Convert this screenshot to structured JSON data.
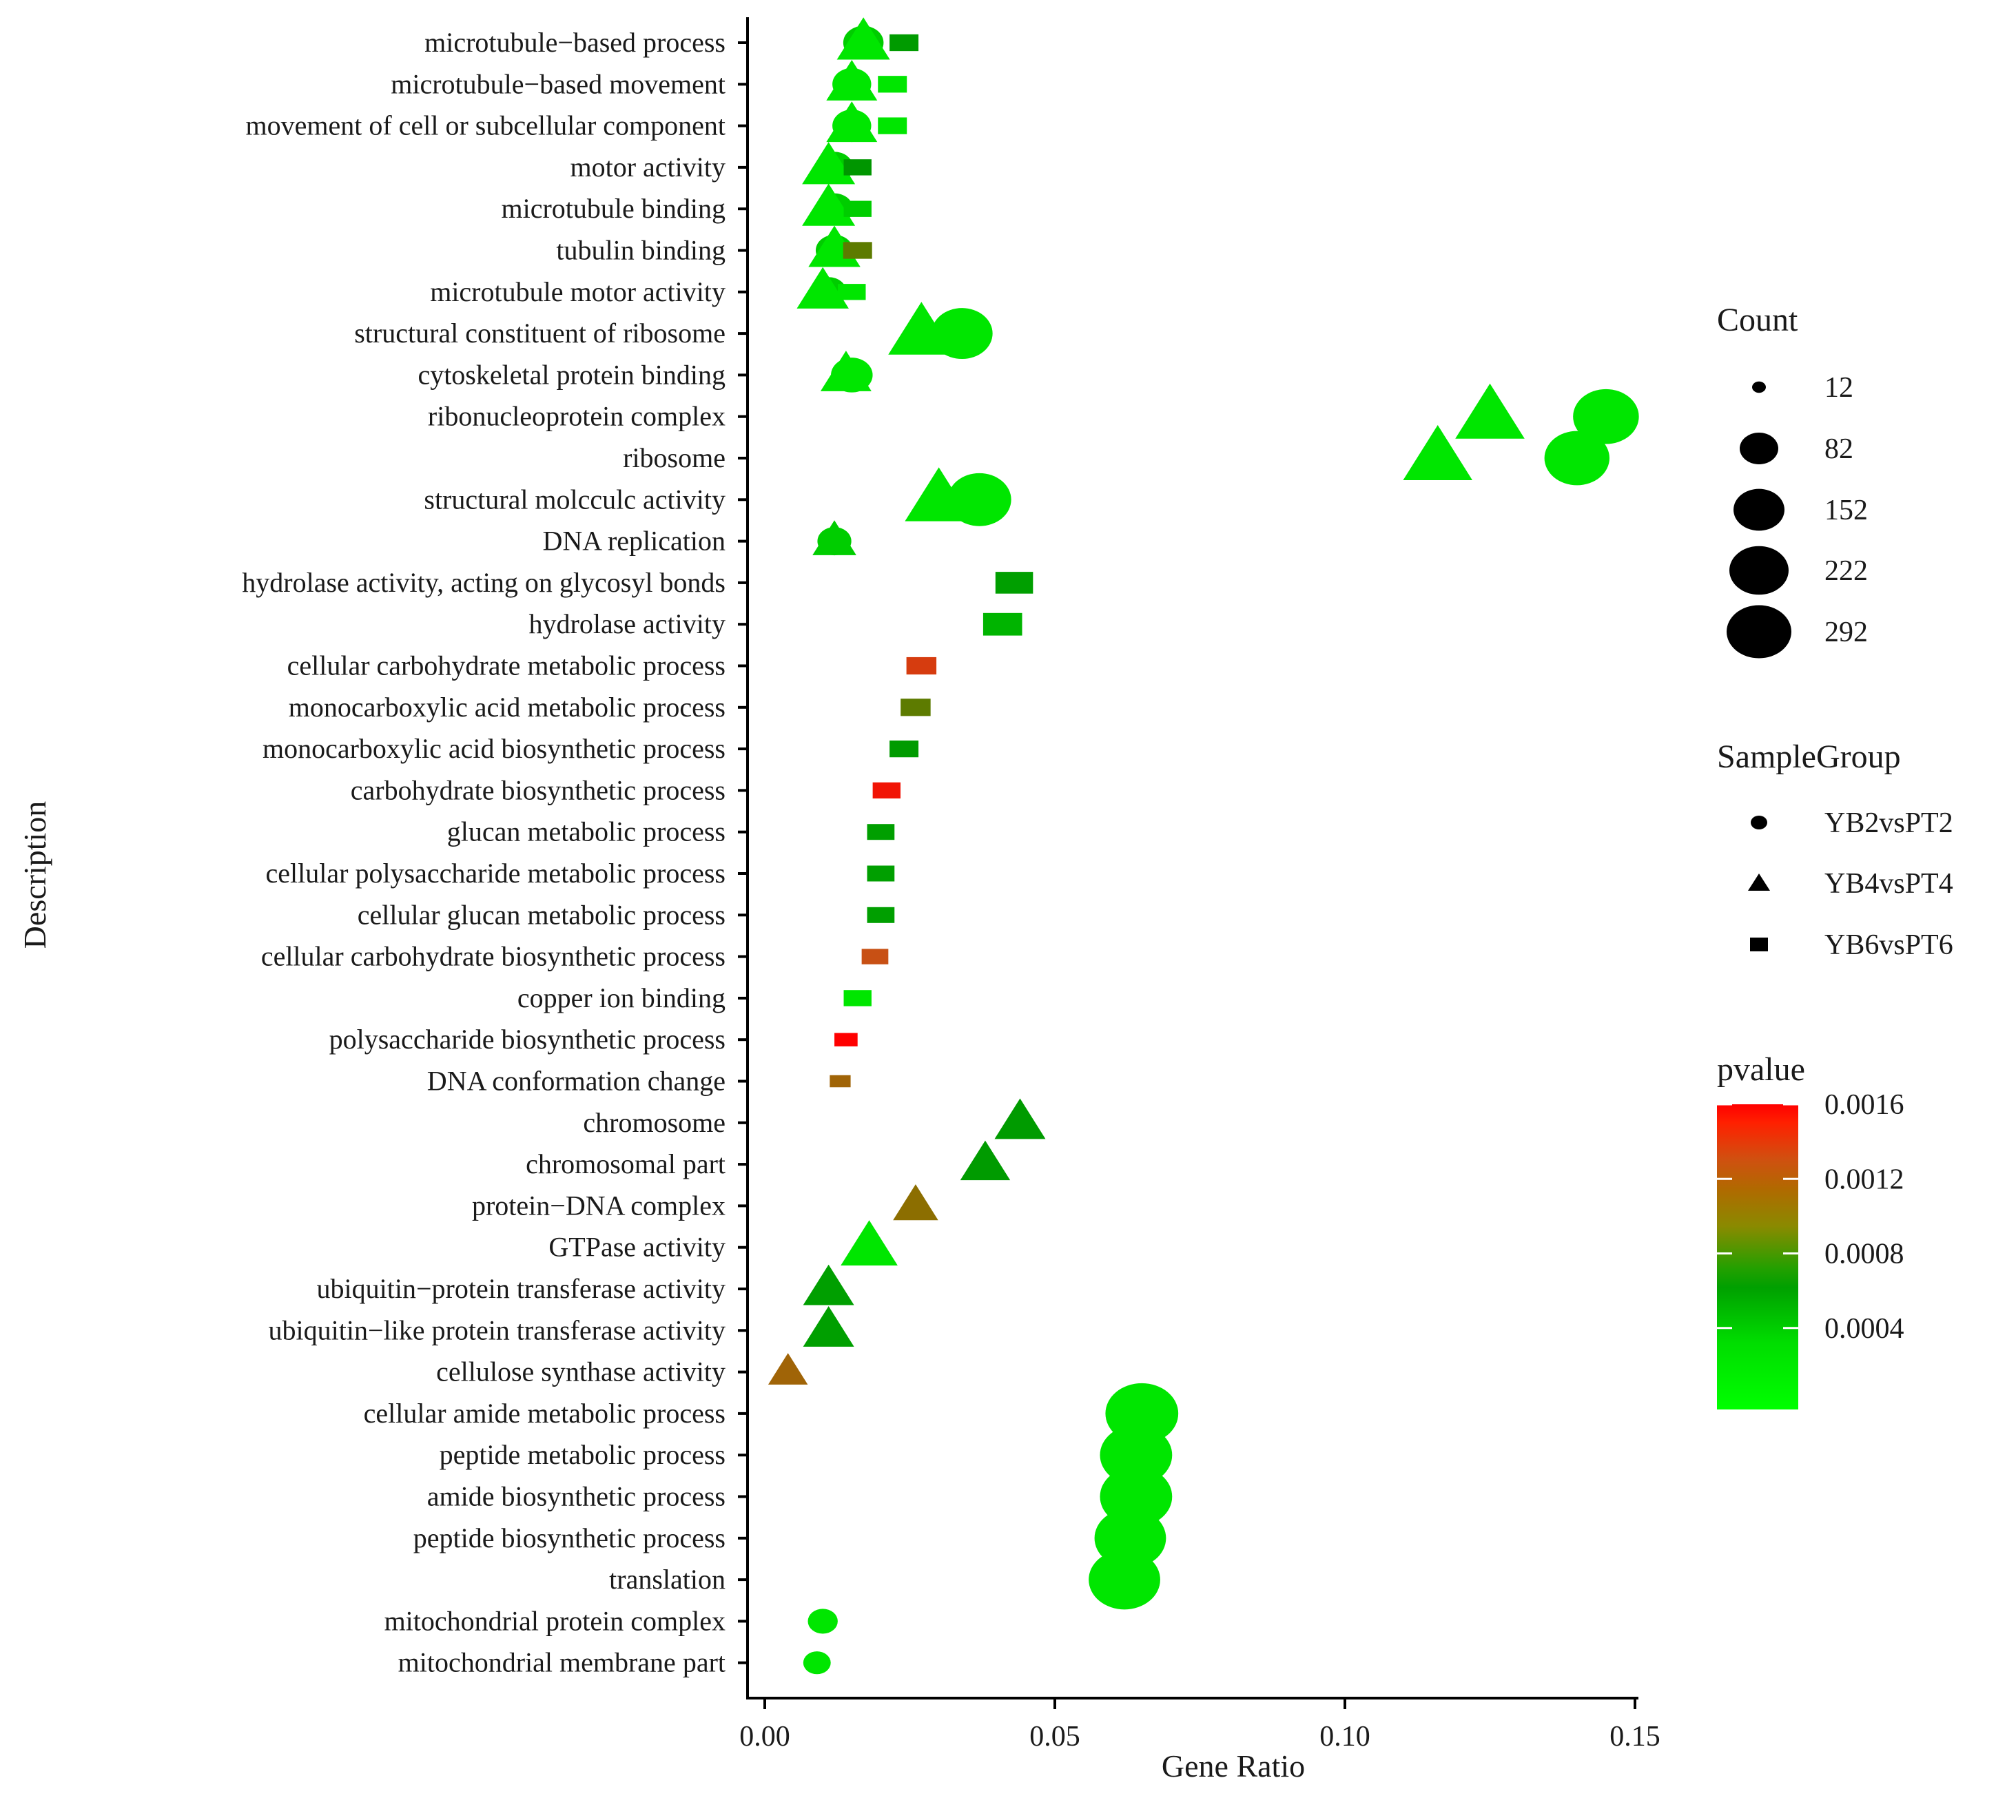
{
  "chart_data": {
    "type": "scatter",
    "xlabel": "Gene Ratio",
    "ylabel": "Description",
    "xlim": [
      -0.004,
      0.15
    ],
    "xticks": [
      0.0,
      0.05,
      0.1,
      0.15
    ],
    "xtick_labels": [
      "0.00",
      "0.05",
      "0.10",
      "0.15"
    ],
    "categories": [
      "microtubule−based process",
      "microtubule−based movement",
      "movement of cell or subcellular component",
      "motor activity",
      "microtubule binding",
      "tubulin binding",
      "microtubule motor activity",
      "structural constituent of ribosome",
      "cytoskeletal protein binding",
      "ribonucleoprotein complex",
      "ribosome",
      "structural molcculc activity",
      "DNA replication",
      "hydrolase activity, acting on glycosyl bonds",
      "hydrolase activity",
      "cellular carbohydrate metabolic process",
      "monocarboxylic acid metabolic process",
      "monocarboxylic acid biosynthetic process",
      "carbohydrate biosynthetic process",
      "glucan metabolic process",
      "cellular polysaccharide metabolic process",
      "cellular glucan metabolic process",
      "cellular carbohydrate biosynthetic process",
      "copper ion binding",
      "polysaccharide biosynthetic process",
      "DNA conformation change",
      "chromosome",
      "chromosomal part",
      "protein−DNA complex",
      "GTPase activity",
      "ubiquitin−protein transferase activity",
      "ubiquitin−like protein transferase activity",
      "cellulose synthase activity",
      "cellular amide metabolic process",
      "peptide metabolic process",
      "amide biosynthetic process",
      "peptide biosynthetic process",
      "translation",
      "mitochondrial protein complex",
      "mitochondrial membrane part"
    ],
    "series": [
      {
        "name": "YB2vsPT2",
        "shape": "circle",
        "points": [
          {
            "category": "microtubule−based process",
            "x": 0.017,
            "count": 50,
            "pvalue": 0.0002
          },
          {
            "category": "microtubule−based movement",
            "x": 0.015,
            "count": 45,
            "pvalue": 0.0001
          },
          {
            "category": "movement of cell or subcellular component",
            "x": 0.015,
            "count": 45,
            "pvalue": 0.0001
          },
          {
            "category": "motor activity",
            "x": 0.012,
            "count": 40,
            "pvalue": 0.0002
          },
          {
            "category": "microtubule binding",
            "x": 0.012,
            "count": 40,
            "pvalue": 0.0002
          },
          {
            "category": "tubulin binding",
            "x": 0.012,
            "count": 40,
            "pvalue": 0.0002
          },
          {
            "category": "microtubule motor activity",
            "x": 0.011,
            "count": 35,
            "pvalue": 0.0002
          },
          {
            "category": "structural constituent of ribosome",
            "x": 0.034,
            "count": 150,
            "pvalue": 0.0001
          },
          {
            "category": "cytoskeletal protein binding",
            "x": 0.015,
            "count": 55,
            "pvalue": 0.0001
          },
          {
            "category": "ribonucleoprotein complex",
            "x": 0.145,
            "count": 180,
            "pvalue": 0.0001
          },
          {
            "category": "ribosome",
            "x": 0.14,
            "count": 175,
            "pvalue": 0.0001
          },
          {
            "category": "structural molcculc activity",
            "x": 0.037,
            "count": 165,
            "pvalue": 0.0001
          },
          {
            "category": "DNA replication",
            "x": 0.012,
            "count": 30,
            "pvalue": 0.0002
          },
          {
            "category": "cellular amide metabolic process",
            "x": 0.065,
            "count": 230,
            "pvalue": 0.0001
          },
          {
            "category": "peptide metabolic process",
            "x": 0.064,
            "count": 225,
            "pvalue": 0.0001
          },
          {
            "category": "amide biosynthetic process",
            "x": 0.064,
            "count": 225,
            "pvalue": 0.0001
          },
          {
            "category": "peptide biosynthetic process",
            "x": 0.063,
            "count": 220,
            "pvalue": 0.0001
          },
          {
            "category": "translation",
            "x": 0.062,
            "count": 220,
            "pvalue": 0.0001
          },
          {
            "category": "mitochondrial protein complex",
            "x": 0.01,
            "count": 20,
            "pvalue": 0.0001
          },
          {
            "category": "mitochondrial membrane part",
            "x": 0.009,
            "count": 15,
            "pvalue": 0.0001
          }
        ]
      },
      {
        "name": "YB4vsPT4",
        "shape": "triangle",
        "points": [
          {
            "category": "microtubule−based process",
            "x": 0.017,
            "count": 100,
            "pvalue": 0.0001
          },
          {
            "category": "microtubule−based movement",
            "x": 0.015,
            "count": 90,
            "pvalue": 0.0001
          },
          {
            "category": "movement of cell or subcellular component",
            "x": 0.015,
            "count": 90,
            "pvalue": 0.0001
          },
          {
            "category": "motor activity",
            "x": 0.011,
            "count": 100,
            "pvalue": 0.0001
          },
          {
            "category": "microtubule binding",
            "x": 0.011,
            "count": 100,
            "pvalue": 0.0001
          },
          {
            "category": "tubulin binding",
            "x": 0.012,
            "count": 95,
            "pvalue": 0.0001
          },
          {
            "category": "microtubule motor activity",
            "x": 0.01,
            "count": 95,
            "pvalue": 0.0001
          },
          {
            "category": "structural constituent of ribosome",
            "x": 0.027,
            "count": 175,
            "pvalue": 0.0001
          },
          {
            "category": "cytoskeletal protein binding",
            "x": 0.014,
            "count": 90,
            "pvalue": 0.0001
          },
          {
            "category": "ribonucleoprotein complex",
            "x": 0.125,
            "count": 195,
            "pvalue": 0.0001
          },
          {
            "category": "ribosome",
            "x": 0.116,
            "count": 195,
            "pvalue": 0.0001
          },
          {
            "category": "structural molcculc activity",
            "x": 0.03,
            "count": 185,
            "pvalue": 0.0001
          },
          {
            "category": "DNA replication",
            "x": 0.012,
            "count": 60,
            "pvalue": 0.0002
          },
          {
            "category": "chromosome",
            "x": 0.044,
            "count": 90,
            "pvalue": 0.0005
          },
          {
            "category": "chromosomal part",
            "x": 0.038,
            "count": 85,
            "pvalue": 0.0005
          },
          {
            "category": "protein−DNA complex",
            "x": 0.026,
            "count": 65,
            "pvalue": 0.0009
          },
          {
            "category": "GTPase activity",
            "x": 0.018,
            "count": 120,
            "pvalue": 0.0001
          },
          {
            "category": "ubiquitin−protein transferase activity",
            "x": 0.011,
            "count": 90,
            "pvalue": 0.0004
          },
          {
            "category": "ubiquitin−like protein transferase activity",
            "x": 0.011,
            "count": 90,
            "pvalue": 0.0004
          },
          {
            "category": "cellulose synthase activity",
            "x": 0.004,
            "count": 45,
            "pvalue": 0.001
          }
        ]
      },
      {
        "name": "YB6vsPT6",
        "shape": "square",
        "points": [
          {
            "category": "microtubule−based process",
            "x": 0.024,
            "count": 45,
            "pvalue": 0.0005
          },
          {
            "category": "microtubule−based movement",
            "x": 0.022,
            "count": 45,
            "pvalue": 0.0001
          },
          {
            "category": "movement of cell or subcellular component",
            "x": 0.022,
            "count": 45,
            "pvalue": 0.0001
          },
          {
            "category": "motor activity",
            "x": 0.016,
            "count": 40,
            "pvalue": 0.0006
          },
          {
            "category": "microtubule binding",
            "x": 0.016,
            "count": 40,
            "pvalue": 0.0002
          },
          {
            "category": "tubulin binding",
            "x": 0.016,
            "count": 45,
            "pvalue": 0.0008
          },
          {
            "category": "microtubule motor activity",
            "x": 0.015,
            "count": 40,
            "pvalue": 0.0001
          },
          {
            "category": "hydrolase activity, acting on glycosyl bonds",
            "x": 0.043,
            "count": 95,
            "pvalue": 0.0004
          },
          {
            "category": "hydrolase activity",
            "x": 0.041,
            "count": 105,
            "pvalue": 0.0003
          },
          {
            "category": "cellular carbohydrate metabolic process",
            "x": 0.027,
            "count": 50,
            "pvalue": 0.0013
          },
          {
            "category": "monocarboxylic acid metabolic process",
            "x": 0.026,
            "count": 50,
            "pvalue": 0.0008
          },
          {
            "category": "monocarboxylic acid biosynthetic process",
            "x": 0.024,
            "count": 45,
            "pvalue": 0.0005
          },
          {
            "category": "carbohydrate biosynthetic process",
            "x": 0.021,
            "count": 40,
            "pvalue": 0.0015
          },
          {
            "category": "glucan metabolic process",
            "x": 0.02,
            "count": 38,
            "pvalue": 0.0004
          },
          {
            "category": "cellular polysaccharide metabolic process",
            "x": 0.02,
            "count": 38,
            "pvalue": 0.0004
          },
          {
            "category": "cellular glucan metabolic process",
            "x": 0.02,
            "count": 38,
            "pvalue": 0.0004
          },
          {
            "category": "cellular carbohydrate biosynthetic process",
            "x": 0.019,
            "count": 35,
            "pvalue": 0.0012
          },
          {
            "category": "copper ion binding",
            "x": 0.016,
            "count": 40,
            "pvalue": 0.0001
          },
          {
            "category": "polysaccharide biosynthetic process",
            "x": 0.014,
            "count": 22,
            "pvalue": 0.0016
          },
          {
            "category": "DNA conformation change",
            "x": 0.013,
            "count": 15,
            "pvalue": 0.001
          }
        ]
      }
    ],
    "legend_count": {
      "title": "Count",
      "values": [
        12,
        82,
        152,
        222,
        292
      ]
    },
    "legend_shape": {
      "title": "SampleGroup",
      "entries": [
        {
          "label": "YB2vsPT2",
          "shape": "circle"
        },
        {
          "label": "YB4vsPT4",
          "shape": "triangle"
        },
        {
          "label": "YB6vsPT6",
          "shape": "square"
        }
      ]
    },
    "legend_color": {
      "title": "pvalue",
      "range": [
        0.0,
        0.0016
      ],
      "ticks": [
        0.0016,
        0.0012,
        0.0008,
        0.0004
      ],
      "tick_labels": [
        "0.0016",
        "0.0012",
        "0.0008",
        "0.0004"
      ],
      "colors": {
        "low": "#00ff00",
        "mid": "#009900",
        "mid_high": "#996600",
        "high": "#ff0000"
      }
    }
  }
}
